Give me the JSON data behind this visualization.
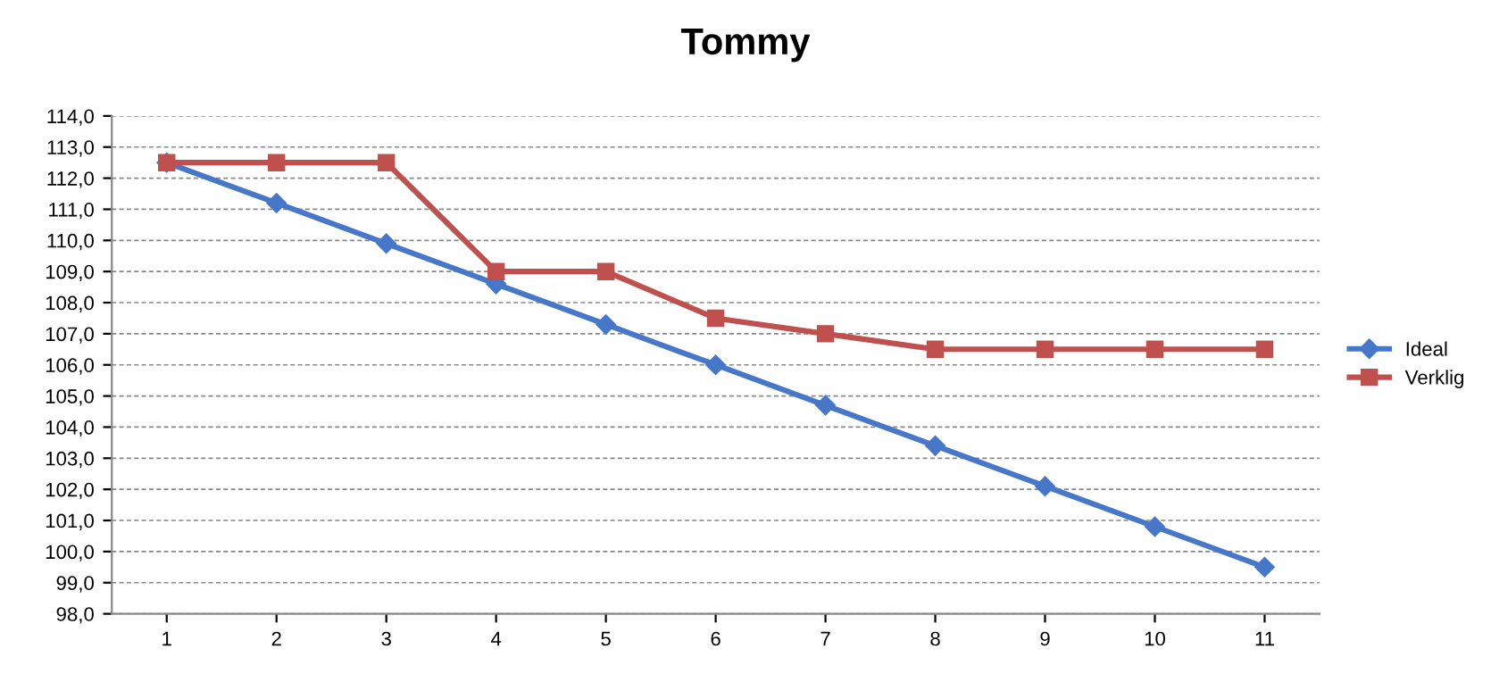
{
  "chart_data": {
    "type": "line",
    "title": "Tommy",
    "categories": [
      "1",
      "2",
      "3",
      "4",
      "5",
      "6",
      "7",
      "8",
      "9",
      "10",
      "11"
    ],
    "series": [
      {
        "name": "Ideal",
        "color": "#4677c8",
        "marker": "diamond",
        "values": [
          112.5,
          111.2,
          109.9,
          108.6,
          107.3,
          106.0,
          104.7,
          103.4,
          102.1,
          100.8,
          99.5
        ]
      },
      {
        "name": "Verklig",
        "color": "#c0504d",
        "marker": "square",
        "values": [
          112.5,
          112.5,
          112.5,
          109.0,
          109.0,
          107.5,
          107.0,
          106.5,
          106.5,
          106.5,
          106.5
        ]
      }
    ],
    "ylim": [
      98,
      114
    ],
    "yticks": [
      {
        "value": 98,
        "label": "98,0"
      },
      {
        "value": 99,
        "label": "99,0"
      },
      {
        "value": 100,
        "label": "100,0"
      },
      {
        "value": 101,
        "label": "101,0"
      },
      {
        "value": 102,
        "label": "102,0"
      },
      {
        "value": 103,
        "label": "103,0"
      },
      {
        "value": 104,
        "label": "104,0"
      },
      {
        "value": 105,
        "label": "105,0"
      },
      {
        "value": 106,
        "label": "106,0"
      },
      {
        "value": 107,
        "label": "107,0"
      },
      {
        "value": 108,
        "label": "108,0"
      },
      {
        "value": 109,
        "label": "109,0"
      },
      {
        "value": 110,
        "label": "110,0"
      },
      {
        "value": 111,
        "label": "111,0"
      },
      {
        "value": 112,
        "label": "112,0"
      },
      {
        "value": 113,
        "label": "113,0"
      },
      {
        "value": 114,
        "label": "114,0"
      }
    ],
    "grid": "y",
    "legend": "right",
    "line_style": "solid"
  }
}
